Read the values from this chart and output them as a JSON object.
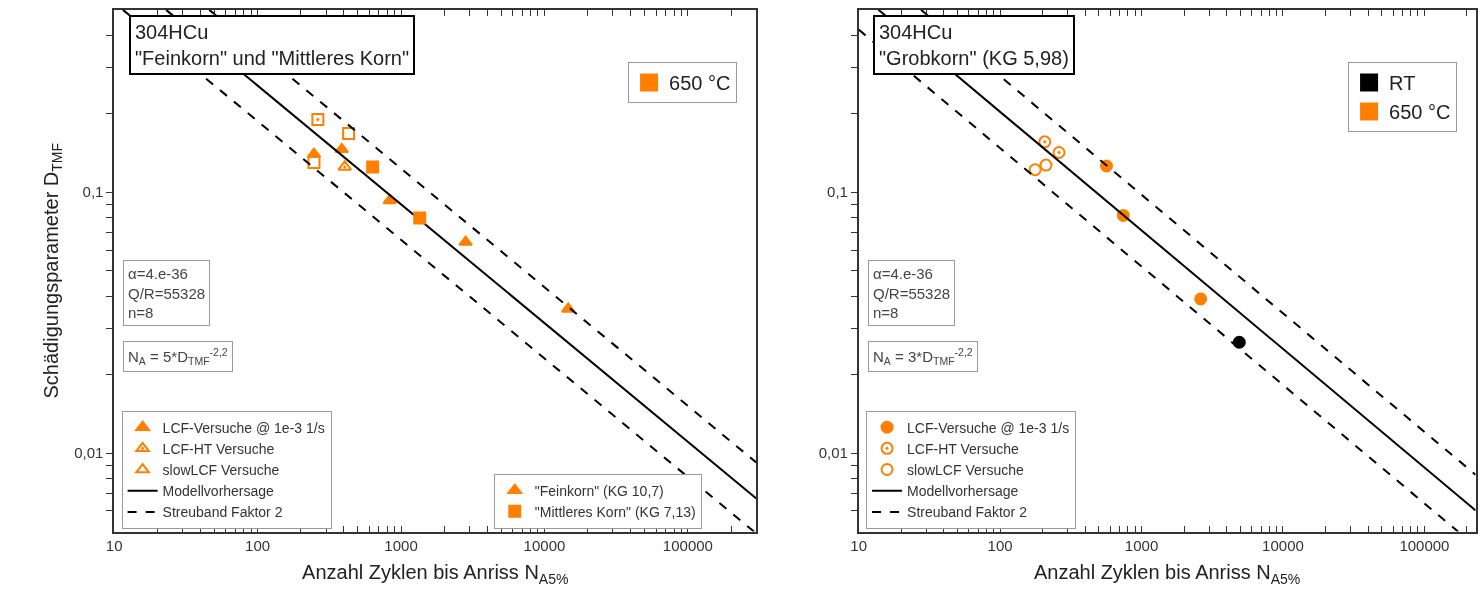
{
  "chart_data": [
    {
      "type": "scatter",
      "title": "304HCu",
      "subtitle": "\"Feinkorn\" und \"Mittleres Korn\"",
      "xlabel": "Anzahl Zyklen bis Anriss N$_{A5%}$",
      "ylabel": "Schädigungsparameter D$_{TMF}$",
      "annotations": [
        "α=4.e-36\nQ/R=55328\nn=8",
        "N$_{A}$ = 5*D$_{TMF}$$^{-2,2}$"
      ],
      "log": "xy",
      "legend": "bottom left",
      "xlim": [
        10,
        300000
      ],
      "ylim": [
        0.005,
        0.5
      ],
      "xticks": [
        10,
        {
          "value": 20,
          "label": null
        },
        {
          "value": 30,
          "label": null
        },
        {
          "value": 40,
          "label": null
        },
        {
          "value": 50,
          "label": null
        },
        {
          "value": 60,
          "label": null
        },
        {
          "value": 70,
          "label": null
        },
        {
          "value": 80,
          "label": null
        },
        {
          "value": 90,
          "label": null
        },
        100,
        {
          "value": 200,
          "label": null
        },
        {
          "value": 300,
          "label": null
        },
        {
          "value": 400,
          "label": null
        },
        {
          "value": 500,
          "label": null
        },
        {
          "value": 600,
          "label": null
        },
        {
          "value": 700,
          "label": null
        },
        {
          "value": 800,
          "label": null
        },
        {
          "value": 900,
          "label": null
        },
        1000,
        {
          "value": 2000,
          "label": null
        },
        {
          "value": 3000,
          "label": null
        },
        {
          "value": 4000,
          "label": null
        },
        {
          "value": 5000,
          "label": null
        },
        {
          "value": 6000,
          "label": null
        },
        {
          "value": 7000,
          "label": null
        },
        {
          "value": 8000,
          "label": null
        },
        {
          "value": 9000,
          "label": null
        },
        10000,
        {
          "value": 20000,
          "label": null
        },
        {
          "value": 30000,
          "label": null
        },
        {
          "value": 40000,
          "label": null
        },
        {
          "value": 50000,
          "label": null
        },
        {
          "value": 60000,
          "label": null
        },
        {
          "value": 70000,
          "label": null
        },
        {
          "value": 80000,
          "label": null
        },
        {
          "value": 90000,
          "label": null
        },
        100000,
        {
          "value": 200000,
          "label": null
        }
      ],
      "yticks": [
        {
          "value": 0.006,
          "label": null
        },
        {
          "value": 0.007,
          "label": null
        },
        {
          "value": 0.008,
          "label": null
        },
        {
          "value": 0.009,
          "label": null
        },
        {
          "value": 0.01,
          "label": "0,01"
        },
        {
          "value": 0.02,
          "label": null
        },
        {
          "value": 0.03,
          "label": null
        },
        {
          "value": 0.04,
          "label": null
        },
        {
          "value": 0.05,
          "label": null
        },
        {
          "value": 0.06,
          "label": null
        },
        {
          "value": 0.07,
          "label": null
        },
        {
          "value": 0.08,
          "label": null
        },
        {
          "value": 0.09,
          "label": null
        },
        {
          "value": 0.1,
          "label": "0,1"
        },
        {
          "value": 0.2,
          "label": null
        },
        {
          "value": 0.3,
          "label": null
        },
        {
          "value": 0.4,
          "label": null
        }
      ],
      "series": [
        {
          "name": "LCF-Versuche @ 1e-3 1/s",
          "color": "#ff8000",
          "marker": "triangle",
          "x": [
            247,
            386,
            835,
            2820,
            14650
          ],
          "values": [
            0.14,
            0.146,
            0.093,
            0.0644,
            0.0357
          ]
        },
        {
          "name": "LCF-HT Versuche",
          "color": "#ff8000",
          "marker": "triangle",
          "x": [
            405
          ],
          "values": [
            0.125
          ]
        },
        {
          "name": "slowLCF Versuche",
          "color": "#ff8000",
          "marker": "triangle"
        },
        {
          "color": "#ff8000",
          "marker": "square",
          "x": [
            263
          ],
          "values": [
            0.19
          ]
        },
        {
          "color": "#ff8000",
          "marker": "square",
          "x": [
            431,
            247
          ],
          "values": [
            0.168,
            0.13
          ]
        },
        {
          "type": "line",
          "name": "Modellvorhersage",
          "color": "#000000",
          "line_style": "solid",
          "x": [
            23,
            300000
          ],
          "values": [
            0.5,
            0.0067
          ]
        },
        {
          "type": "line",
          "name": "Streuband Faktor 2",
          "color": "#000000",
          "line_style": "dashed",
          "x": [
            46,
            300000
          ],
          "values": [
            0.5,
            0.0092
          ]
        },
        {
          "type": "line",
          "color": "#000000",
          "line_style": "dashed",
          "x": [
            11.5,
            289000
          ],
          "values": [
            0.5,
            0.005
          ]
        },
        {
          "name": "\"Feinkorn\" (KG 10,7)",
          "color": "#ff8000",
          "marker": "triangle"
        },
        {
          "name": "\"Mittleres Korn\" (KG 7,13)",
          "color": "#ff8000",
          "marker": "square",
          "x": [
            634,
            1350
          ],
          "values": [
            0.125,
            0.0796
          ]
        },
        {
          "name": "650 °C",
          "color": "#ff8000",
          "marker": "square"
        }
      ]
    },
    {
      "type": "scatter",
      "title": "304HCu",
      "subtitle": "\"Grobkorn\" (KG 5,98)",
      "xlabel": "Anzahl Zyklen bis Anriss N$_{A5%}$",
      "annotations": [
        "α=4.e-36\nQ/R=55328\nn=8",
        "N$_{A}$ = 3*D$_{TMF}$$^{-2,2}$"
      ],
      "log": "xy",
      "legend": "bottom left",
      "xlim": [
        10,
        230000
      ],
      "ylim": [
        0.005,
        0.5
      ],
      "xticks": [
        10,
        {
          "value": 20,
          "label": null
        },
        {
          "value": 30,
          "label": null
        },
        {
          "value": 40,
          "label": null
        },
        {
          "value": 50,
          "label": null
        },
        {
          "value": 60,
          "label": null
        },
        {
          "value": 70,
          "label": null
        },
        {
          "value": 80,
          "label": null
        },
        {
          "value": 90,
          "label": null
        },
        100,
        {
          "value": 200,
          "label": null
        },
        {
          "value": 300,
          "label": null
        },
        {
          "value": 400,
          "label": null
        },
        {
          "value": 500,
          "label": null
        },
        {
          "value": 600,
          "label": null
        },
        {
          "value": 700,
          "label": null
        },
        {
          "value": 800,
          "label": null
        },
        {
          "value": 900,
          "label": null
        },
        1000,
        {
          "value": 2000,
          "label": null
        },
        {
          "value": 3000,
          "label": null
        },
        {
          "value": 4000,
          "label": null
        },
        {
          "value": 5000,
          "label": null
        },
        {
          "value": 6000,
          "label": null
        },
        {
          "value": 7000,
          "label": null
        },
        {
          "value": 8000,
          "label": null
        },
        {
          "value": 9000,
          "label": null
        },
        10000,
        {
          "value": 20000,
          "label": null
        },
        {
          "value": 30000,
          "label": null
        },
        {
          "value": 40000,
          "label": null
        },
        {
          "value": 50000,
          "label": null
        },
        {
          "value": 60000,
          "label": null
        },
        {
          "value": 70000,
          "label": null
        },
        {
          "value": 80000,
          "label": null
        },
        {
          "value": 90000,
          "label": null
        },
        100000,
        {
          "value": 200000,
          "label": null
        }
      ],
      "yticks": [
        {
          "value": 0.006,
          "label": null
        },
        {
          "value": 0.007,
          "label": null
        },
        {
          "value": 0.008,
          "label": null
        },
        {
          "value": 0.009,
          "label": null
        },
        {
          "value": 0.01,
          "label": "0,01"
        },
        {
          "value": 0.02,
          "label": null
        },
        {
          "value": 0.03,
          "label": null
        },
        {
          "value": 0.04,
          "label": null
        },
        {
          "value": 0.05,
          "label": null
        },
        {
          "value": 0.06,
          "label": null
        },
        {
          "value": 0.07,
          "label": null
        },
        {
          "value": 0.08,
          "label": null
        },
        {
          "value": 0.09,
          "label": null
        },
        {
          "value": 0.1,
          "label": "0,1"
        },
        {
          "value": 0.2,
          "label": null
        },
        {
          "value": 0.3,
          "label": null
        },
        {
          "value": 0.4,
          "label": null
        }
      ],
      "series": [
        {
          "name": "LCF-Versuche @ 1e-3 1/s",
          "color": "#ff8000",
          "marker": "circle",
          "x": [
            565,
            743,
            2620
          ],
          "values": [
            0.126,
            0.0815,
            0.039
          ]
        },
        {
          "name": "LCF-HT Versuche",
          "color": "#ff8000",
          "marker": "circle",
          "x": [
            207,
            261
          ],
          "values": [
            0.156,
            0.142
          ]
        },
        {
          "name": "slowLCF Versuche",
          "color": "#ff8000",
          "marker": "circle",
          "x": [
            177,
            211
          ],
          "values": [
            0.122,
            0.127
          ]
        },
        {
          "color": "#000000",
          "marker": "circle",
          "x": [
            4910
          ],
          "values": [
            0.0266
          ]
        },
        {
          "type": "line",
          "name": "Modellvorhersage",
          "color": "#000000",
          "line_style": "solid",
          "x": [
            13.8,
            230000
          ],
          "values": [
            0.5,
            0.00603
          ]
        },
        {
          "type": "line",
          "name": "Streuband Faktor 2",
          "color": "#000000",
          "line_style": "dashed",
          "x": [
            27.6,
            230000
          ],
          "values": [
            0.5,
            0.00826
          ]
        },
        {
          "type": "line",
          "color": "#000000",
          "line_style": "dashed",
          "x": [
            10,
            173000
          ],
          "values": [
            0.42,
            0.005
          ]
        },
        {
          "name": "RT",
          "color": "#000000",
          "marker": "square"
        },
        {
          "name": "650 °C",
          "color": "#ff8000",
          "marker": "square"
        }
      ]
    }
  ]
}
